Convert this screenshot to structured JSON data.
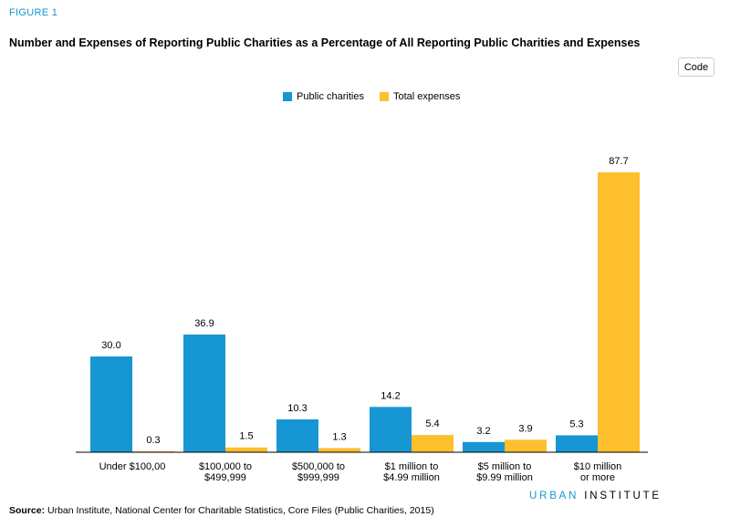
{
  "figure_label": "FIGURE 1",
  "code_button": "Code",
  "source_label": "Source:",
  "source_text": "Urban Institute, National Center for Charitable Statistics, Core Files (Public Charities, 2015)",
  "brand": {
    "part1": "URBAN",
    "part2": "INSTITUTE"
  },
  "colors": {
    "public_charities": "#1696d2",
    "total_expenses": "#fdbf2e",
    "axis": "#000000"
  },
  "chart_data": {
    "type": "bar",
    "title": "Number and Expenses of Reporting Public Charities as a Percentage of All Reporting Public Charities and Expenses",
    "categories": [
      [
        "Under $100,00"
      ],
      [
        "$100,000 to",
        "$499,999"
      ],
      [
        "$500,000 to",
        "$999,999"
      ],
      [
        "$1 million to",
        "$4.99 million"
      ],
      [
        "$5 million to",
        "$9.99 million"
      ],
      [
        "$10 million",
        "or more"
      ]
    ],
    "series": [
      {
        "name": "Public charities",
        "values": [
          30.0,
          36.9,
          10.3,
          14.2,
          3.2,
          5.3
        ],
        "labels": [
          "30.0",
          "36.9",
          "10.3",
          "14.2",
          "3.2",
          "5.3"
        ]
      },
      {
        "name": "Total expenses",
        "values": [
          0.3,
          1.5,
          1.3,
          5.4,
          3.9,
          87.7
        ],
        "labels": [
          "0.3",
          "1.5",
          "1.3",
          "5.4",
          "3.9",
          "87.7"
        ]
      }
    ],
    "ylim": [
      0,
      100
    ],
    "grid": false,
    "legend": "top-center"
  }
}
